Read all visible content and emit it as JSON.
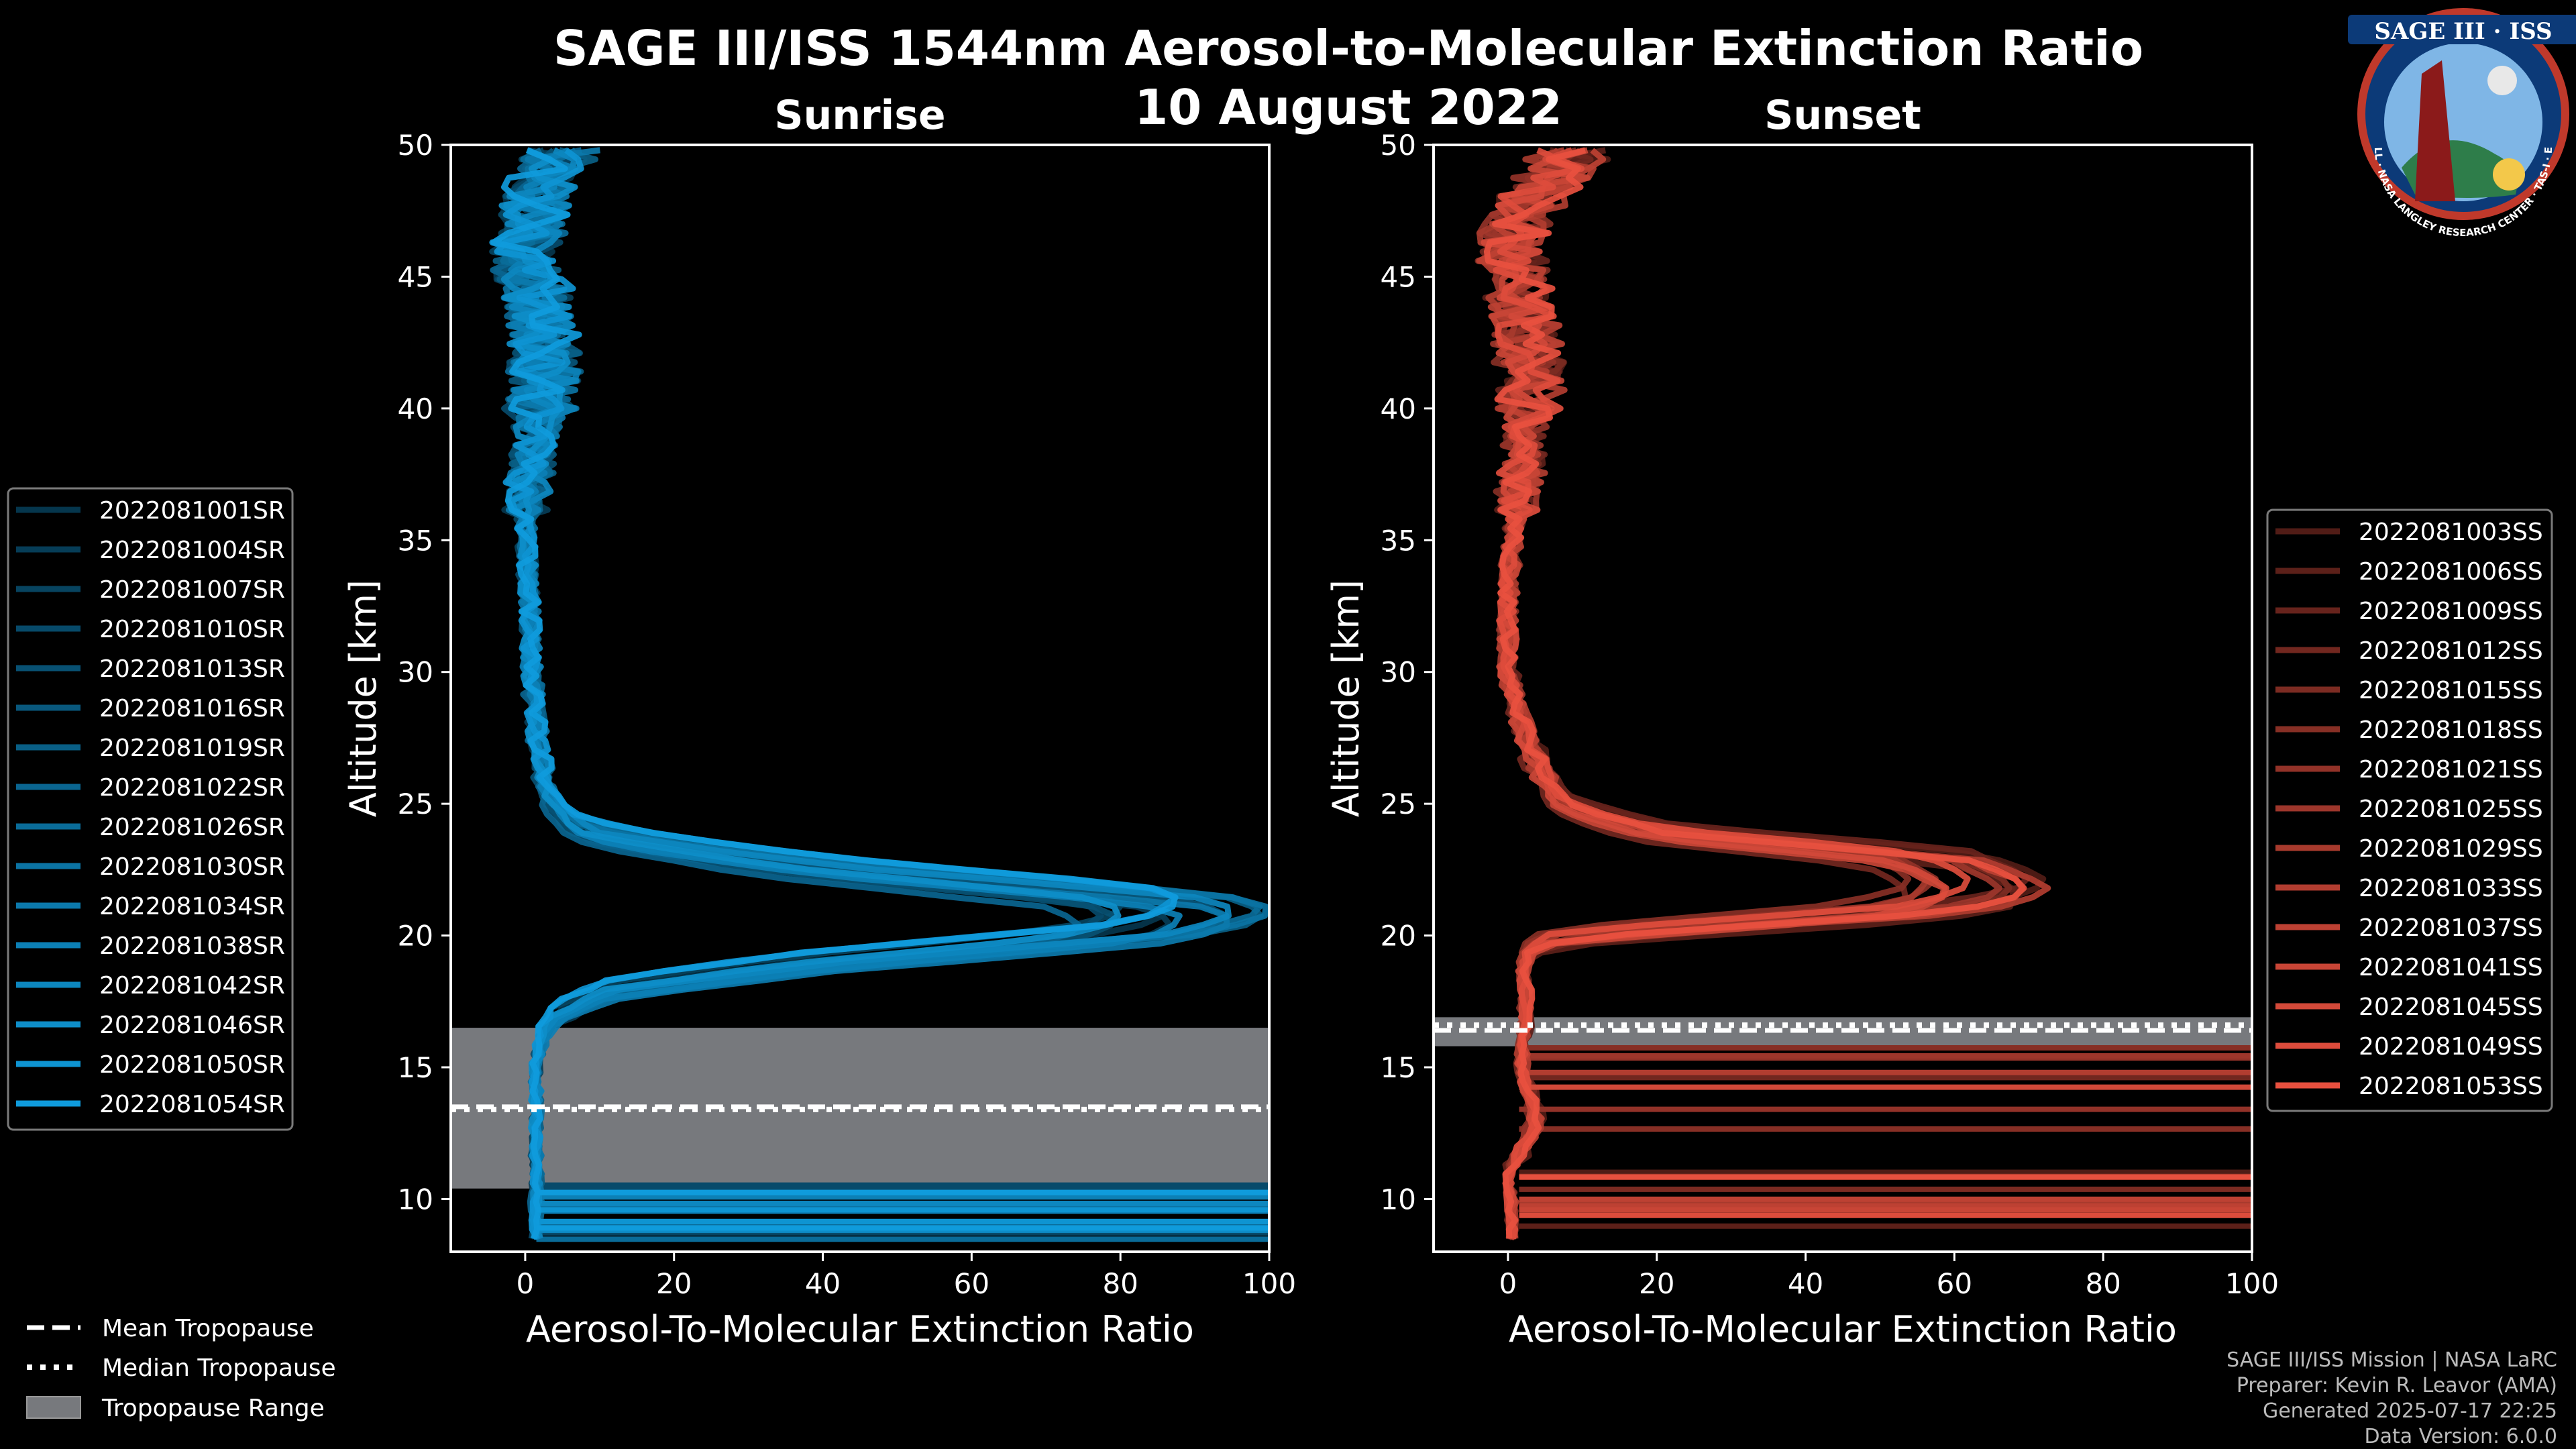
{
  "title": "SAGE III/ISS 1544nm Aerosol-to-Molecular Extinction Ratio",
  "date": "10 August 2022",
  "logo": {
    "text": "SAGE III · ISS",
    "ring_text": "BALL · NASA LANGLEY RESEARCH CENTER · TAS-I · ESA"
  },
  "footer": {
    "line1": "SAGE III/ISS Mission | NASA LaRC",
    "line2": "Preparer: Kevin R. Leavor (AMA)",
    "line3": "Generated 2025-07-17 22:25",
    "line4": "Data Version: 6.0.0"
  },
  "bottom_legend": {
    "mean": "Mean Tropopause",
    "median": "Median Tropopause",
    "range": "Tropopause Range"
  },
  "chart_data": [
    {
      "type": "line",
      "title": "Sunrise",
      "xlabel": "Aerosol-To-Molecular Extinction Ratio",
      "ylabel": "Altitude [km]",
      "xlim": [
        -10,
        100
      ],
      "ylim": [
        8,
        50
      ],
      "xticks": [
        0,
        20,
        40,
        60,
        80,
        100
      ],
      "yticks": [
        10,
        15,
        20,
        25,
        30,
        35,
        40,
        45,
        50
      ],
      "color_base": "#0f9bdc",
      "tropopause": {
        "mean": 13.5,
        "median": 13.4,
        "range": [
          10.4,
          16.5
        ]
      },
      "series_names": [
        "2022081001SR",
        "2022081004SR",
        "2022081007SR",
        "2022081010SR",
        "2022081013SR",
        "2022081016SR",
        "2022081019SR",
        "2022081022SR",
        "2022081026SR",
        "2022081030SR",
        "2022081034SR",
        "2022081038SR",
        "2022081042SR",
        "2022081046SR",
        "2022081050SR",
        "2022081054SR"
      ],
      "typical_profile": {
        "altitude_km": [
          8.5,
          10,
          12,
          14,
          15,
          16,
          17,
          18,
          19,
          20,
          20.5,
          21,
          21.5,
          22,
          22.5,
          23,
          23.5,
          24,
          25,
          26,
          28,
          30,
          33,
          36,
          38,
          40,
          42,
          44,
          46,
          48,
          50
        ],
        "ratio": [
          1.5,
          1.5,
          1.5,
          1.5,
          1.5,
          2,
          4,
          12,
          40,
          80,
          88,
          90,
          85,
          65,
          45,
          30,
          18,
          8,
          4,
          2.5,
          1.5,
          1,
          0.5,
          0,
          1,
          2,
          3,
          2,
          0,
          2,
          5
        ]
      }
    },
    {
      "type": "line",
      "title": "Sunset",
      "xlabel": "Aerosol-To-Molecular Extinction Ratio",
      "ylabel": "Altitude [km]",
      "xlim": [
        -10,
        100
      ],
      "ylim": [
        8,
        50
      ],
      "xticks": [
        0,
        20,
        40,
        60,
        80,
        100
      ],
      "yticks": [
        10,
        15,
        20,
        25,
        30,
        35,
        40,
        45,
        50
      ],
      "color_base": "#e8503f",
      "tropopause": {
        "mean": 16.4,
        "median": 16.6,
        "range": [
          15.8,
          16.9
        ]
      },
      "series_names": [
        "2022081003SS",
        "2022081006SS",
        "2022081009SS",
        "2022081012SS",
        "2022081015SS",
        "2022081018SS",
        "2022081021SS",
        "2022081025SS",
        "2022081029SS",
        "2022081033SS",
        "2022081037SS",
        "2022081041SS",
        "2022081045SS",
        "2022081049SS",
        "2022081053SS"
      ],
      "typical_profile": {
        "altitude_km": [
          8.5,
          10,
          11,
          12,
          13,
          14,
          15,
          16,
          17,
          18,
          19,
          19.5,
          20,
          20.5,
          21,
          21.5,
          22,
          22.5,
          23,
          23.5,
          24,
          25,
          26,
          28,
          30,
          33,
          36,
          38,
          40,
          42,
          44,
          46,
          48,
          50
        ],
        "ratio": [
          0.5,
          0.5,
          0,
          2,
          4,
          3,
          2,
          2,
          2.5,
          2.5,
          2,
          3,
          6,
          30,
          55,
          63,
          65,
          62,
          58,
          40,
          20,
          8,
          5,
          2,
          0,
          0,
          1,
          2,
          3,
          3,
          2,
          0,
          3,
          10
        ]
      }
    }
  ]
}
